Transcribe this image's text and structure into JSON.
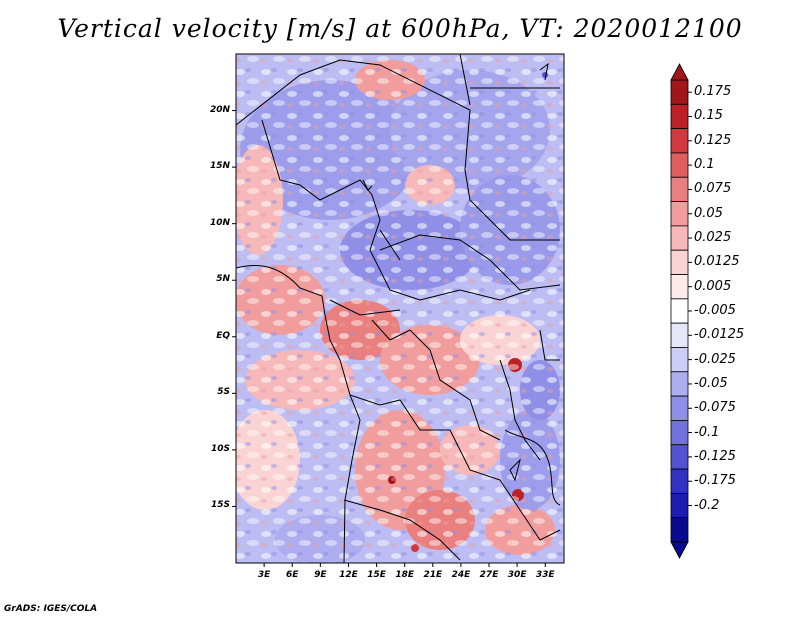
{
  "chart_data": {
    "type": "heatmap",
    "title": "Vertical velocity [m/s] at 600hPa, VT: 2020012100",
    "xlabel": "",
    "ylabel": "",
    "x_range": [
      0,
      35
    ],
    "y_range": [
      -20,
      25
    ],
    "x_ticks": [
      {
        "value": 3,
        "label": "3E"
      },
      {
        "value": 6,
        "label": "6E"
      },
      {
        "value": 9,
        "label": "9E"
      },
      {
        "value": 12,
        "label": "12E"
      },
      {
        "value": 15,
        "label": "15E"
      },
      {
        "value": 18,
        "label": "18E"
      },
      {
        "value": 21,
        "label": "21E"
      },
      {
        "value": 24,
        "label": "24E"
      },
      {
        "value": 27,
        "label": "27E"
      },
      {
        "value": 30,
        "label": "30E"
      },
      {
        "value": 33,
        "label": "33E"
      }
    ],
    "y_ticks": [
      {
        "value": 20,
        "label": "20N"
      },
      {
        "value": 15,
        "label": "15N"
      },
      {
        "value": 10,
        "label": "10N"
      },
      {
        "value": 5,
        "label": "5N"
      },
      {
        "value": 0,
        "label": "EQ"
      },
      {
        "value": -5,
        "label": "5S"
      },
      {
        "value": -10,
        "label": "10S"
      },
      {
        "value": -15,
        "label": "15S"
      }
    ],
    "colorbar": {
      "levels": [
        "0.175",
        "0.15",
        "0.125",
        "0.1",
        "0.075",
        "0.05",
        "0.025",
        "0.0125",
        "0.005",
        "-0.005",
        "-0.0125",
        "-0.025",
        "-0.05",
        "-0.075",
        "-0.1",
        "-0.125",
        "-0.175",
        "-0.2"
      ],
      "colors": [
        "#a1161a",
        "#bd2026",
        "#d13a3c",
        "#e15e5e",
        "#e97f7f",
        "#f19d9d",
        "#f6b8b8",
        "#fad4d4",
        "#fdeaea",
        "#ffffff",
        "#e7e7fb",
        "#cdcdf7",
        "#adadf0",
        "#8f8fe8",
        "#7171df",
        "#5252d3",
        "#3232c2",
        "#1c1cae",
        "#0a0a8c"
      ],
      "top_color": "#a1161a",
      "bottom_color": "#0a0a8c"
    },
    "legend": "right"
  },
  "footer": "GrADS: IGES/COLA"
}
